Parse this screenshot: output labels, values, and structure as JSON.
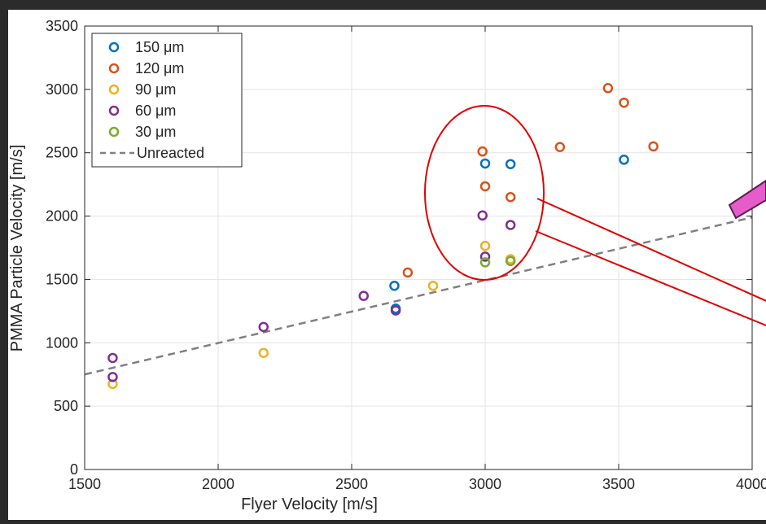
{
  "chart_data": {
    "type": "scatter",
    "xlabel": "Flyer Velocity [m/s]",
    "ylabel": "PMMA Particle Velocity [m/s]",
    "xlim": [
      1500,
      4000
    ],
    "ylim": [
      0,
      3500
    ],
    "xticks": [
      "1500",
      "2000",
      "2500",
      "3000",
      "3500",
      "4000"
    ],
    "yticks": [
      "0",
      "500",
      "1000",
      "1500",
      "2000",
      "2500",
      "3000",
      "3500"
    ],
    "grid": true,
    "legend_position": "top-left",
    "series": [
      {
        "name": "150 μm",
        "color": "#0072BD",
        "points": [
          [
            2660,
            1450
          ],
          [
            2665,
            1270
          ],
          [
            3000,
            2415
          ],
          [
            3095,
            2410
          ],
          [
            3520,
            2445
          ]
        ]
      },
      {
        "name": "120 μm",
        "color": "#D95319",
        "points": [
          [
            2710,
            1555
          ],
          [
            2990,
            2510
          ],
          [
            3000,
            2235
          ],
          [
            3095,
            2150
          ],
          [
            3280,
            2545
          ],
          [
            3460,
            3010
          ],
          [
            3520,
            2895
          ],
          [
            3630,
            2550
          ]
        ]
      },
      {
        "name": "90 μm",
        "color": "#EDB120",
        "points": [
          [
            1605,
            675
          ],
          [
            2170,
            920
          ],
          [
            2805,
            1450
          ],
          [
            3000,
            1765
          ],
          [
            3095,
            1660
          ]
        ]
      },
      {
        "name": "60 μm",
        "color": "#7E2F8E",
        "points": [
          [
            1605,
            880
          ],
          [
            1605,
            730
          ],
          [
            2170,
            1125
          ],
          [
            2545,
            1370
          ],
          [
            2665,
            1255
          ],
          [
            2990,
            2005
          ],
          [
            3000,
            1680
          ],
          [
            3095,
            1930
          ]
        ]
      },
      {
        "name": "30 μm",
        "color": "#77AC30",
        "points": [
          [
            3000,
            1635
          ],
          [
            3095,
            1645
          ]
        ]
      }
    ],
    "reference_line": {
      "name": "Unreacted",
      "color": "#808080",
      "points": [
        [
          1500,
          750
        ],
        [
          4000,
          1990
        ]
      ]
    },
    "annotation": {
      "type": "callout-ellipse",
      "color": "#E00000",
      "target": "points at flyer velocity 3000-3100 m/s"
    },
    "arrow_color": "#E65CCB"
  }
}
